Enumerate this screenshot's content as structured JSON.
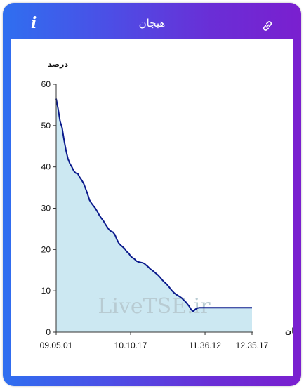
{
  "header": {
    "title": "هیجان",
    "info_icon": "info-icon",
    "link_icon": "link-icon"
  },
  "colors": {
    "gradient_start": "#2f6ff0",
    "gradient_end": "#7a1fcf",
    "line": "#0a1a8c",
    "fill": "#cce8f2",
    "watermark": "#b8cbd2"
  },
  "watermark": "LiveTSE.ir",
  "chart_data": {
    "type": "area",
    "ylabel": "درصد",
    "xlabel": "زمان",
    "ylim": [
      0,
      60
    ],
    "yticks": [
      0,
      10,
      20,
      30,
      40,
      50,
      60
    ],
    "x_tick_labels": [
      "09.05.01",
      "10.10.17",
      "11.36.12",
      "12.35.17"
    ],
    "x_tick_positions": [
      0,
      0.38,
      0.76,
      1.0
    ],
    "grid": false,
    "series": [
      {
        "x": [
          0,
          0.01,
          0.02,
          0.03,
          0.04,
          0.05,
          0.06,
          0.07,
          0.08,
          0.09,
          0.1,
          0.11,
          0.12,
          0.13,
          0.14,
          0.15,
          0.16,
          0.17,
          0.18,
          0.19,
          0.2,
          0.21,
          0.22,
          0.23,
          0.24,
          0.25,
          0.26,
          0.27,
          0.28,
          0.29,
          0.3,
          0.31,
          0.32,
          0.33,
          0.34,
          0.35,
          0.36,
          0.37,
          0.38,
          0.39,
          0.4,
          0.41,
          0.42,
          0.43,
          0.44,
          0.45,
          0.46,
          0.47,
          0.48,
          0.49,
          0.5,
          0.51,
          0.52,
          0.53,
          0.54,
          0.55,
          0.56,
          0.57,
          0.58,
          0.59,
          0.6,
          0.61,
          0.62,
          0.63,
          0.64,
          0.65,
          0.66,
          0.67,
          0.68,
          0.69,
          0.7,
          0.71,
          0.72,
          0.73,
          0.74,
          0.75,
          0.76,
          0.77,
          0.78,
          0.79,
          0.8,
          0.81,
          0.82,
          0.83,
          0.84,
          0.85,
          0.86,
          0.87,
          0.88,
          0.89,
          0.9,
          0.91,
          0.92,
          0.93,
          0.94,
          0.95,
          0.96,
          0.97,
          0.98,
          0.99,
          1.0
        ],
        "values": [
          56.5,
          54,
          51,
          49.5,
          46.5,
          44,
          42,
          40.8,
          40,
          39,
          38.5,
          38.4,
          37.5,
          36.8,
          36,
          34.8,
          33.5,
          32,
          31.2,
          30.6,
          30,
          29.2,
          28.3,
          27.6,
          27,
          26.2,
          25.5,
          24.8,
          24.4,
          24.2,
          23.6,
          22.4,
          21.5,
          21,
          20.6,
          20.2,
          19.5,
          19.1,
          18.4,
          18,
          17.7,
          17.2,
          17,
          16.9,
          16.8,
          16.6,
          16.2,
          15.8,
          15.3,
          15,
          14.6,
          14.2,
          13.8,
          13.3,
          12.7,
          12.2,
          11.8,
          11.3,
          10.7,
          10.1,
          9.6,
          9.2,
          8.9,
          8.6,
          8.3,
          7.8,
          7.4,
          6.8,
          6.2,
          5.4,
          5.0,
          5.5,
          5.8,
          5.9,
          5.9,
          5.9,
          5.9,
          5.9,
          5.9,
          5.9,
          5.9,
          5.9,
          5.9,
          5.9,
          5.9,
          5.9,
          5.9,
          5.9,
          5.9,
          5.9,
          5.9,
          5.9,
          5.9,
          5.9,
          5.9,
          5.9,
          5.9,
          5.9,
          5.9,
          5.9,
          5.9
        ]
      }
    ]
  }
}
